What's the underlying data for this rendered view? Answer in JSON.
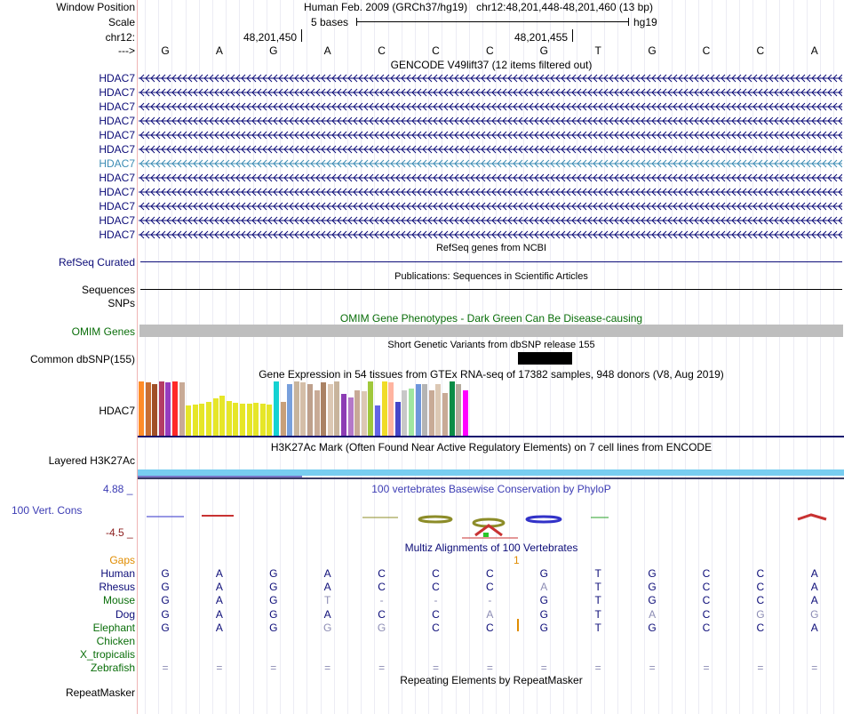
{
  "header": {
    "window_position_label": "Window Position",
    "assembly_text": "Human Feb. 2009 (GRCh37/hg19)",
    "position_text": "chr12:48,201,448-48,201,460 (13 bp)",
    "scale_label": "Scale",
    "scale_text": "5 bases",
    "scale_db": "hg19",
    "chrom_label": "chr12:",
    "coord1": "48,201,450",
    "coord2": "48,201,455",
    "strand_label": "--->"
  },
  "reference_bases": [
    "G",
    "A",
    "G",
    "A",
    "C",
    "C",
    "C",
    "G",
    "T",
    "G",
    "C",
    "C",
    "A"
  ],
  "gencode": {
    "title": "GENCODE V49lift37 (12 items filtered out)",
    "items": [
      "HDAC7",
      "HDAC7",
      "HDAC7",
      "HDAC7",
      "HDAC7",
      "HDAC7",
      "HDAC7",
      "HDAC7",
      "HDAC7",
      "HDAC7",
      "HDAC7",
      "HDAC7"
    ],
    "highlighted_index": 6
  },
  "refseq": {
    "title": "RefSeq genes from NCBI",
    "label": "RefSeq Curated"
  },
  "pubs": {
    "title": "Publications: Sequences in Scientific Articles",
    "label": "Sequences"
  },
  "snps": {
    "label": "SNPs"
  },
  "omim": {
    "title": "OMIM Gene Phenotypes - Dark Green Can Be Disease-causing",
    "label": "OMIM Genes"
  },
  "dbsnp": {
    "title": "Short Genetic Variants from dbSNP release 155",
    "label": "Common dbSNP(155)"
  },
  "gtex": {
    "title": "Gene Expression in 54 tissues from GTEx RNA-seq of 17382 samples, 948 donors (V8, Aug 2019)",
    "label": "HDAC7",
    "bars": [
      {
        "v": 0.98,
        "c": "#ff8c28"
      },
      {
        "v": 0.96,
        "c": "#c86e32"
      },
      {
        "v": 0.93,
        "c": "#a05028"
      },
      {
        "v": 0.98,
        "c": "#b43c64"
      },
      {
        "v": 0.96,
        "c": "#963cbe"
      },
      {
        "v": 0.98,
        "c": "#ff2828"
      },
      {
        "v": 0.96,
        "c": "#c8aa96"
      },
      {
        "v": 0.55,
        "c": "#e6e628"
      },
      {
        "v": 0.56,
        "c": "#e6e628"
      },
      {
        "v": 0.58,
        "c": "#e6e628"
      },
      {
        "v": 0.62,
        "c": "#e6e628"
      },
      {
        "v": 0.68,
        "c": "#e6e628"
      },
      {
        "v": 0.72,
        "c": "#e6e628"
      },
      {
        "v": 0.63,
        "c": "#e6e628"
      },
      {
        "v": 0.6,
        "c": "#e6e628"
      },
      {
        "v": 0.58,
        "c": "#e6e628"
      },
      {
        "v": 0.58,
        "c": "#e6e628"
      },
      {
        "v": 0.6,
        "c": "#e6e628"
      },
      {
        "v": 0.58,
        "c": "#e6e628"
      },
      {
        "v": 0.56,
        "c": "#e6e628"
      },
      {
        "v": 0.98,
        "c": "#14d2d2"
      },
      {
        "v": 0.62,
        "c": "#c8a07a"
      },
      {
        "v": 0.93,
        "c": "#78a0dc"
      },
      {
        "v": 0.98,
        "c": "#c8b49c"
      },
      {
        "v": 0.96,
        "c": "#d4bea8"
      },
      {
        "v": 0.94,
        "c": "#bea08c"
      },
      {
        "v": 0.82,
        "c": "#c8aa96"
      },
      {
        "v": 0.96,
        "c": "#aa8264"
      },
      {
        "v": 0.93,
        "c": "#dcc8b4"
      },
      {
        "v": 0.98,
        "c": "#c8b49c"
      },
      {
        "v": 0.76,
        "c": "#8c3cb4"
      },
      {
        "v": 0.7,
        "c": "#b478c8"
      },
      {
        "v": 0.82,
        "c": "#c8aa96"
      },
      {
        "v": 0.8,
        "c": "#dcc8b4"
      },
      {
        "v": 0.98,
        "c": "#a0c83c"
      },
      {
        "v": 0.55,
        "c": "#6464e6"
      },
      {
        "v": 0.98,
        "c": "#f0dc28"
      },
      {
        "v": 0.96,
        "c": "#ffb4a0"
      },
      {
        "v": 0.62,
        "c": "#4646c8"
      },
      {
        "v": 0.82,
        "c": "#c8c8c8"
      },
      {
        "v": 0.86,
        "c": "#a0e6a0"
      },
      {
        "v": 0.93,
        "c": "#6e96dc"
      },
      {
        "v": 0.93,
        "c": "#b4b4b4"
      },
      {
        "v": 0.82,
        "c": "#c8aa96"
      },
      {
        "v": 0.93,
        "c": "#dcc8b4"
      },
      {
        "v": 0.78,
        "c": "#c8aa96"
      },
      {
        "v": 0.98,
        "c": "#0a8c46"
      },
      {
        "v": 0.93,
        "c": "#b4aa9c"
      },
      {
        "v": 0.82,
        "c": "#ff00ff"
      }
    ]
  },
  "h3k27ac": {
    "title": "H3K27Ac Mark (Often Found Near Active Regulatory Elements) on 7 cell lines from ENCODE",
    "label": "Layered H3K27Ac"
  },
  "phylop": {
    "max": "4.88 _",
    "min": "-4.5 _",
    "title": "100 vertebrates Basewise Conservation by PhyloP",
    "label": "100 Vert. Cons"
  },
  "multiz": {
    "title": "Multiz Alignments of 100 Vertebrates",
    "gaps_label": "Gaps",
    "gap_count": "1",
    "species": [
      {
        "name": "Human",
        "color": "#0c0c78",
        "bases": [
          "G",
          "A",
          "G",
          "A",
          "C",
          "C",
          "C",
          "G",
          "T",
          "G",
          "C",
          "C",
          "A"
        ],
        "dim": []
      },
      {
        "name": "Rhesus",
        "color": "#0c0c78",
        "bases": [
          "G",
          "A",
          "G",
          "A",
          "C",
          "C",
          "C",
          "A",
          "T",
          "G",
          "C",
          "C",
          "A"
        ],
        "dim": [
          7
        ]
      },
      {
        "name": "Mouse",
        "color": "#0a6e0a",
        "bases": [
          "G",
          "A",
          "G",
          "T",
          "-",
          "-",
          "-",
          "G",
          "T",
          "G",
          "C",
          "C",
          "A"
        ],
        "dim": [
          3,
          4,
          5,
          6
        ]
      },
      {
        "name": "Dog",
        "color": "#0c0c78",
        "bases": [
          "G",
          "A",
          "G",
          "A",
          "C",
          "C",
          "A",
          "G",
          "T",
          "A",
          "C",
          "G",
          "G"
        ],
        "dim": [
          6,
          9,
          11,
          12
        ]
      },
      {
        "name": "Elephant",
        "color": "#0a6e0a",
        "bases": [
          "G",
          "A",
          "G",
          "G",
          "G",
          "C",
          "C",
          "G",
          "T",
          "G",
          "C",
          "C",
          "A"
        ],
        "dim": [
          3,
          4
        ]
      },
      {
        "name": "Chicken",
        "color": "#0a6e0a",
        "bases": [],
        "dim": []
      },
      {
        "name": "X_tropicalis",
        "color": "#0a6e0a",
        "bases": [],
        "dim": []
      },
      {
        "name": "Zebrafish",
        "color": "#0a6e0a",
        "bases": [
          "=",
          "=",
          "=",
          "=",
          "=",
          "=",
          "=",
          "=",
          "=",
          "=",
          "=",
          "=",
          "="
        ],
        "dim": [
          0,
          1,
          2,
          3,
          4,
          5,
          6,
          7,
          8,
          9,
          10,
          11,
          12
        ]
      }
    ]
  },
  "repeatmasker": {
    "title": "Repeating Elements by RepeatMasker",
    "label": "RepeatMasker"
  }
}
